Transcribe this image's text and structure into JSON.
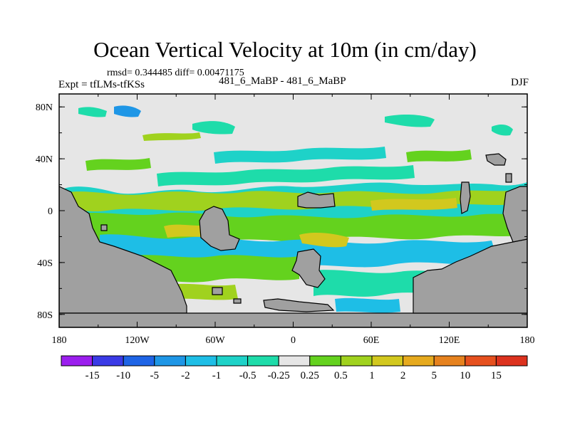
{
  "chart_data": {
    "type": "heatmap",
    "title": "Ocean Vertical Velocity at 10m (in cm/day)",
    "stats_line": "rmsd= 0.344485 diff= 0.00471175",
    "experiment_label": "Expt = tfLMs-tfKSs",
    "case_label": "481_6_MaBP - 481_6_MaBP",
    "season_label": "DJF",
    "x_ticks": [
      "180",
      "120W",
      "60W",
      "0",
      "60E",
      "120E",
      "180"
    ],
    "x_tick_values": [
      -180,
      -120,
      -60,
      0,
      60,
      120,
      180
    ],
    "y_ticks": [
      "80N",
      "40N",
      "0",
      "40S",
      "80S"
    ],
    "y_tick_values": [
      80,
      40,
      0,
      -40,
      -80
    ],
    "xlim": [
      -180,
      180
    ],
    "ylim": [
      -90,
      90
    ],
    "colorbar_labels": [
      "-15",
      "-10",
      "-5",
      "-2",
      "-1",
      "-0.5",
      "-0.25",
      "0.25",
      "0.5",
      "1",
      "2",
      "5",
      "10",
      "15"
    ],
    "colorbar_colors": [
      "#9b1eee",
      "#3a3ae6",
      "#1e64e6",
      "#1e96e6",
      "#1ebee6",
      "#1ed2c8",
      "#1edcaa",
      "#e6e6e6",
      "#64d21e",
      "#a0d21e",
      "#d2c81e",
      "#e6aa1e",
      "#e6821e",
      "#e6501e",
      "#dc321e"
    ],
    "land_color": "#a0a0a0",
    "neutral_color": "#e6e6e6"
  }
}
